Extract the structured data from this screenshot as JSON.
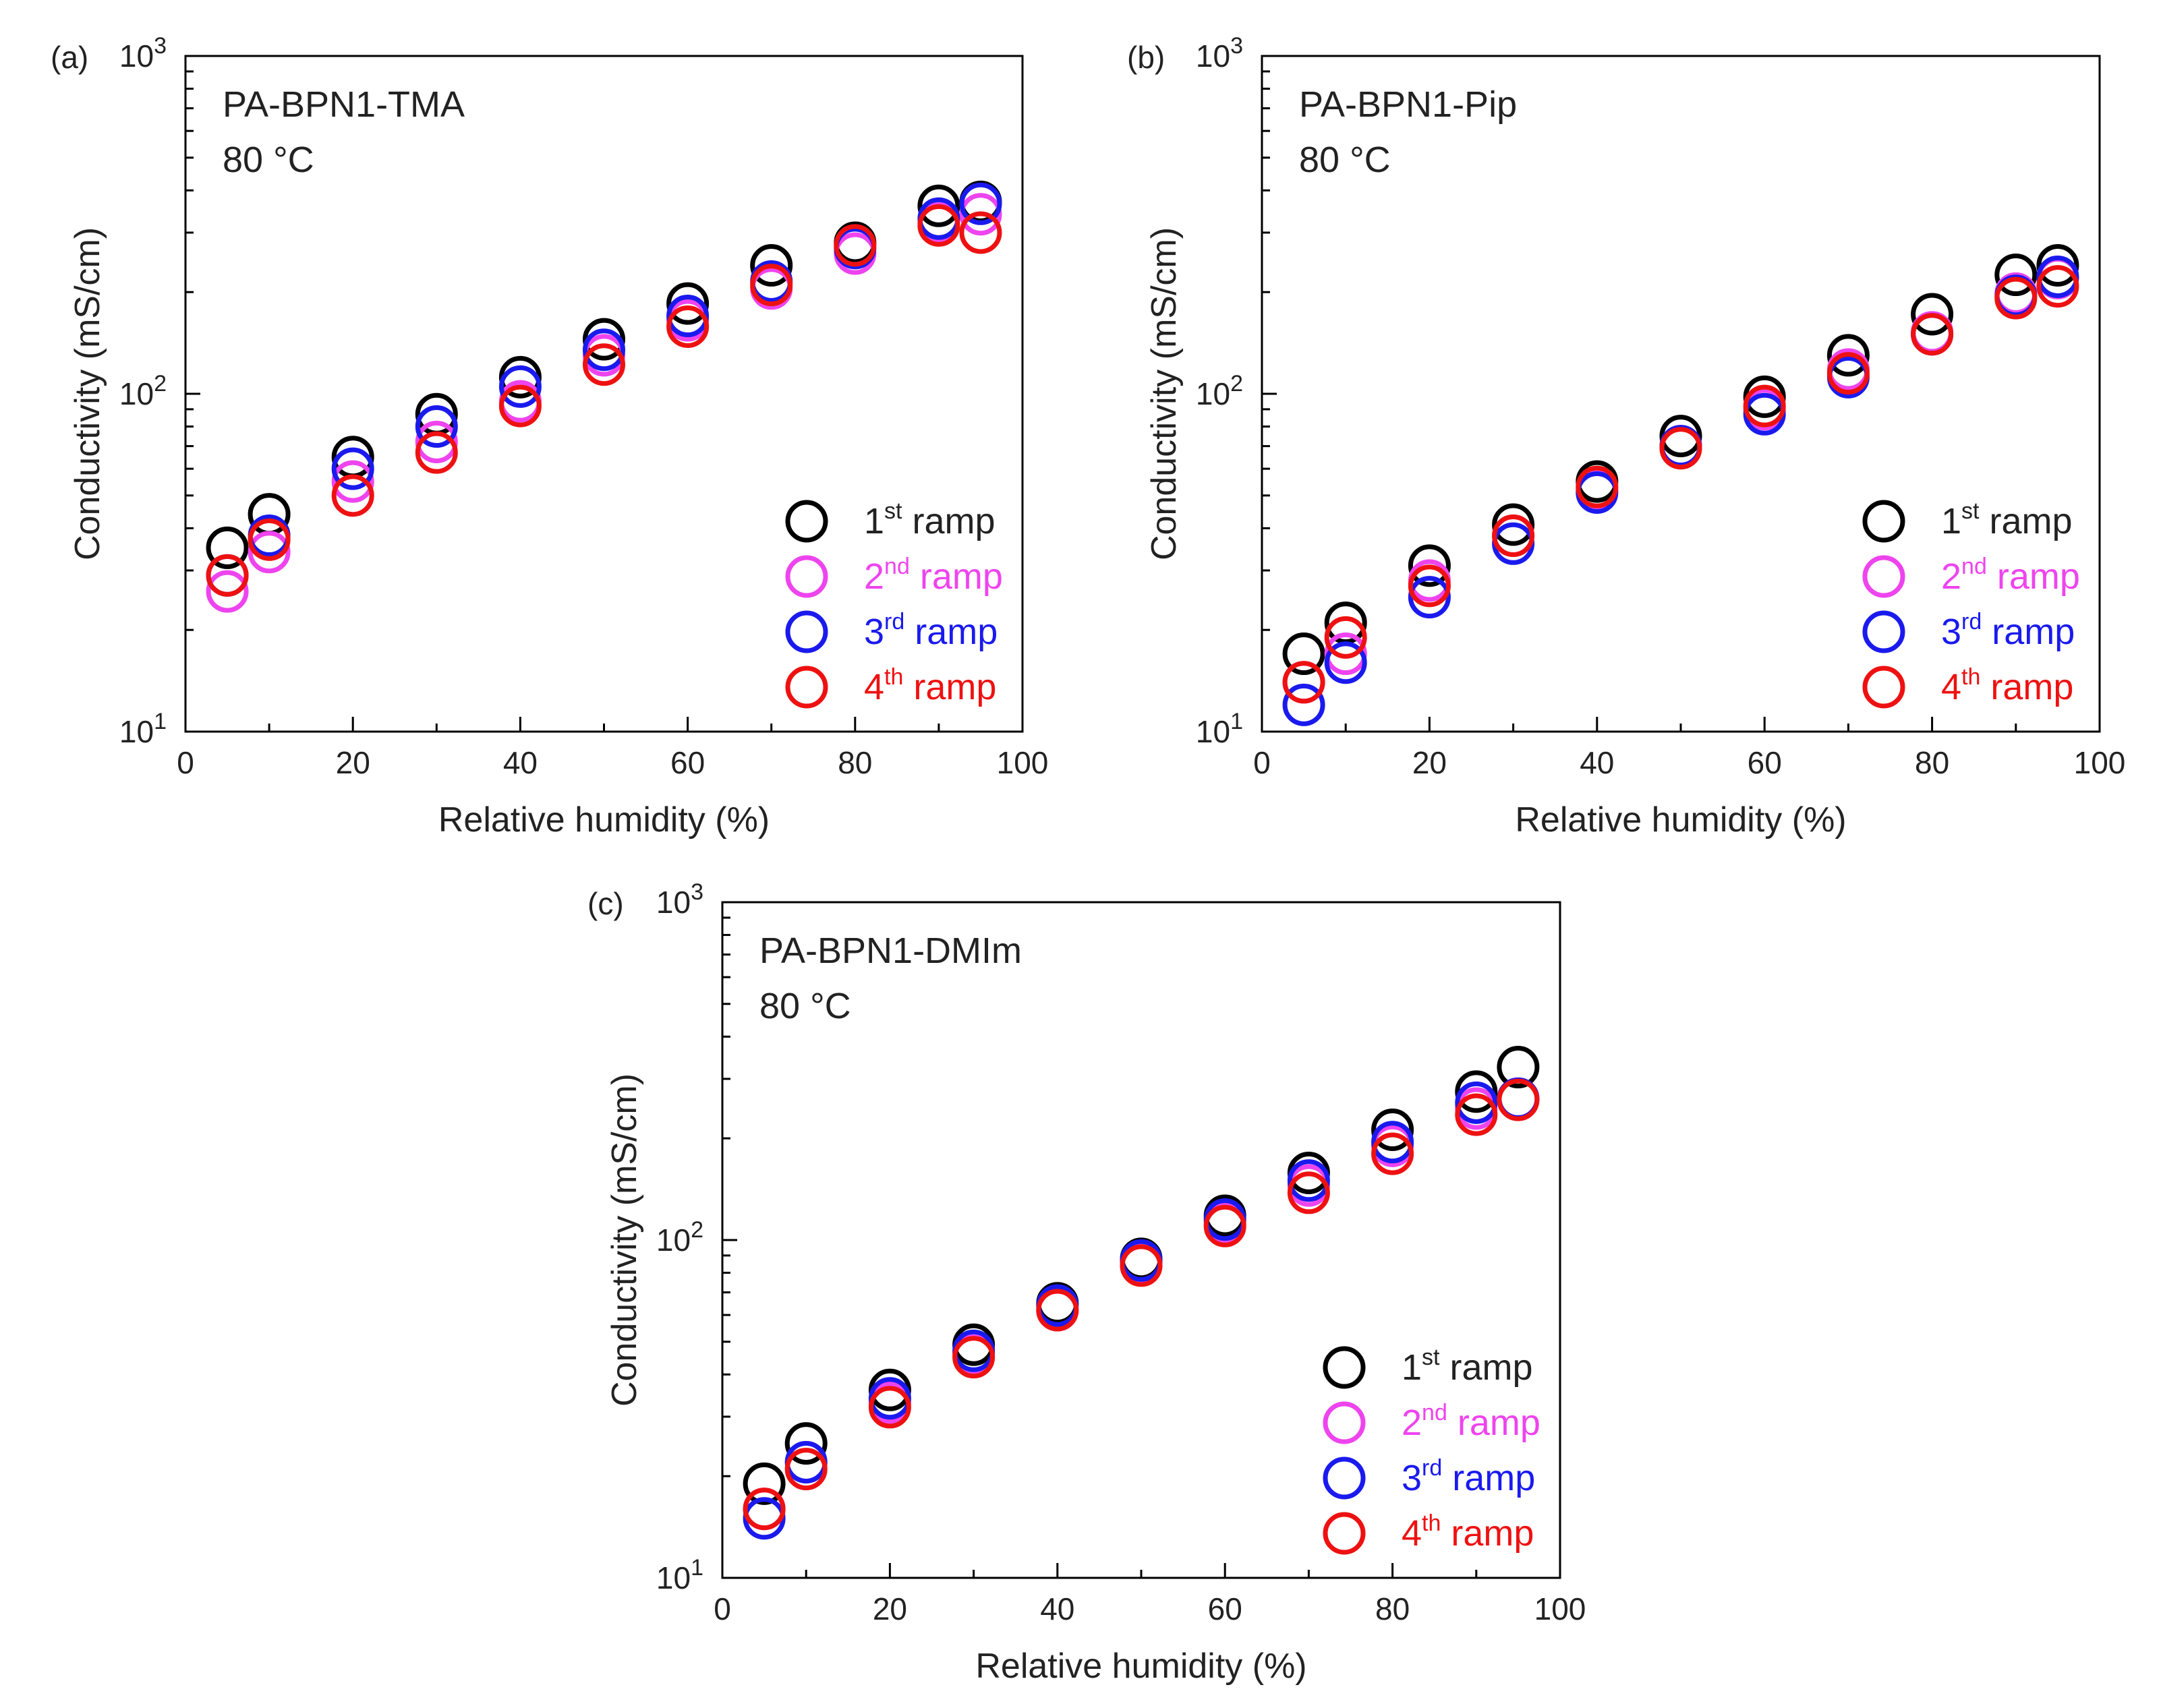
{
  "figure": {
    "x_axis_label": "Relative humidity (%)",
    "y_axis_label": "Conductivity (mS/cm)"
  },
  "legend": [
    {
      "num": "1",
      "sup": "st",
      "word": "ramp",
      "color": "#000000"
    },
    {
      "num": "2",
      "sup": "nd",
      "word": "ramp",
      "color": "#ee44ee"
    },
    {
      "num": "3",
      "sup": "rd",
      "word": "ramp",
      "color": "#1a1aee"
    },
    {
      "num": "4",
      "sup": "th",
      "word": "ramp",
      "color": "#ee1111"
    }
  ],
  "chart_data": [
    {
      "type": "scatter",
      "panel": "(a)",
      "title": "PA-BPN1-TMA",
      "temperature": "80 °C",
      "xlabel": "Relative humidity (%)",
      "ylabel": "Conductivity (mS/cm)",
      "xlim": [
        0,
        100
      ],
      "ylim": [
        10,
        1000
      ],
      "yscale": "log",
      "x_ticks": [
        "0",
        "20",
        "40",
        "60",
        "80",
        "100"
      ],
      "y_ticks": [
        {
          "base": "10",
          "exp": "1"
        },
        {
          "base": "10",
          "exp": "2"
        },
        {
          "base": "10",
          "exp": "3"
        }
      ],
      "x": [
        5,
        10,
        20,
        30,
        40,
        50,
        60,
        70,
        80,
        90,
        95
      ],
      "series": [
        {
          "name": "1st ramp",
          "values": [
            35,
            44,
            65,
            87,
            112,
            145,
            185,
            240,
            280,
            360,
            370
          ]
        },
        {
          "name": "2nd ramp",
          "values": [
            26,
            34,
            55,
            72,
            95,
            130,
            165,
            205,
            260,
            320,
            340
          ]
        },
        {
          "name": "3rd ramp",
          "values": [
            29,
            38,
            60,
            80,
            105,
            135,
            170,
            215,
            270,
            330,
            365
          ]
        },
        {
          "name": "4th ramp",
          "values": [
            29,
            37,
            50,
            67,
            92,
            122,
            158,
            210,
            275,
            315,
            300
          ]
        }
      ]
    },
    {
      "type": "scatter",
      "panel": "(b)",
      "title": "PA-BPN1-Pip",
      "temperature": "80 °C",
      "xlabel": "Relative humidity (%)",
      "ylabel": "Conductivity (mS/cm)",
      "xlim": [
        0,
        100
      ],
      "ylim": [
        10,
        1000
      ],
      "yscale": "log",
      "x_ticks": [
        "0",
        "20",
        "40",
        "60",
        "80",
        "100"
      ],
      "y_ticks": [
        {
          "base": "10",
          "exp": "1"
        },
        {
          "base": "10",
          "exp": "2"
        },
        {
          "base": "10",
          "exp": "3"
        }
      ],
      "x": [
        5,
        10,
        20,
        30,
        40,
        50,
        60,
        70,
        80,
        90,
        95
      ],
      "series": [
        {
          "name": "1st ramp",
          "values": [
            17,
            21,
            31,
            41,
            55,
            75,
            98,
            130,
            172,
            225,
            240
          ]
        },
        {
          "name": "2nd ramp",
          "values": [
            14,
            17,
            28,
            38,
            52,
            70,
            90,
            118,
            152,
            198,
            220
          ]
        },
        {
          "name": "3rd ramp",
          "values": [
            12,
            16,
            25,
            36,
            51,
            70,
            87,
            112,
            150,
            195,
            222
          ]
        },
        {
          "name": "4th ramp",
          "values": [
            14,
            19,
            27,
            38,
            53,
            69,
            92,
            115,
            150,
            192,
            208
          ]
        }
      ]
    },
    {
      "type": "scatter",
      "panel": "(c)",
      "title": "PA-BPN1-DMIm",
      "temperature": "80 °C",
      "xlabel": "Relative humidity (%)",
      "ylabel": "Conductivity (mS/cm)",
      "xlim": [
        0,
        100
      ],
      "ylim": [
        10,
        1000
      ],
      "yscale": "log",
      "x_ticks": [
        "0",
        "20",
        "40",
        "60",
        "80",
        "100"
      ],
      "y_ticks": [
        {
          "base": "10",
          "exp": "1"
        },
        {
          "base": "10",
          "exp": "2"
        },
        {
          "base": "10",
          "exp": "3"
        }
      ],
      "x": [
        5,
        10,
        20,
        30,
        40,
        50,
        60,
        70,
        80,
        90,
        95
      ],
      "series": [
        {
          "name": "1st ramp",
          "values": [
            19,
            25,
            36,
            49,
            65,
            88,
            118,
            158,
            212,
            275,
            325
          ]
        },
        {
          "name": "2nd ramp",
          "values": [
            16,
            22,
            33,
            46,
            62,
            85,
            112,
            145,
            190,
            245,
            262
          ]
        },
        {
          "name": "3rd ramp",
          "values": [
            15,
            22,
            34,
            47,
            64,
            87,
            115,
            150,
            195,
            255,
            262
          ]
        },
        {
          "name": "4th ramp",
          "values": [
            16,
            21,
            32,
            45,
            62,
            84,
            110,
            138,
            180,
            235,
            260
          ]
        }
      ]
    }
  ]
}
